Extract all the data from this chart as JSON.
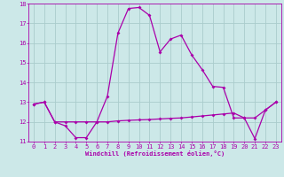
{
  "xlabel": "Windchill (Refroidissement éolien,°C)",
  "ylabel": "",
  "bg_color": "#cce8e8",
  "grid_color": "#aacccc",
  "line_color": "#aa00aa",
  "xlim": [
    -0.5,
    23.5
  ],
  "ylim": [
    11,
    18
  ],
  "yticks": [
    11,
    12,
    13,
    14,
    15,
    16,
    17,
    18
  ],
  "xticks": [
    0,
    1,
    2,
    3,
    4,
    5,
    6,
    7,
    8,
    9,
    10,
    11,
    12,
    13,
    14,
    15,
    16,
    17,
    18,
    19,
    20,
    21,
    22,
    23
  ],
  "series1_x": [
    0,
    1,
    2,
    3,
    4,
    5,
    6,
    7,
    8,
    9,
    10,
    11,
    12,
    13,
    14,
    15,
    16,
    17,
    18,
    19,
    20,
    21,
    22,
    23
  ],
  "series1_y": [
    12.9,
    13.0,
    12.0,
    11.8,
    11.2,
    11.2,
    12.0,
    13.3,
    16.5,
    17.75,
    17.8,
    17.4,
    15.55,
    16.2,
    16.4,
    15.4,
    14.65,
    13.8,
    13.75,
    12.2,
    12.2,
    11.15,
    12.6,
    13.0
  ],
  "series2_x": [
    0,
    1,
    2,
    3,
    4,
    5,
    6,
    7,
    8,
    9,
    10,
    11,
    12,
    13,
    14,
    15,
    16,
    17,
    18,
    19,
    20,
    21,
    22,
    23
  ],
  "series2_y": [
    12.9,
    13.0,
    12.0,
    12.0,
    12.0,
    12.0,
    12.0,
    12.0,
    12.05,
    12.08,
    12.1,
    12.12,
    12.15,
    12.18,
    12.2,
    12.25,
    12.3,
    12.35,
    12.4,
    12.45,
    12.2,
    12.2,
    12.6,
    13.0
  ],
  "tick_fontsize": 5,
  "xlabel_fontsize": 5,
  "marker_size": 2.0,
  "line_width": 0.9
}
